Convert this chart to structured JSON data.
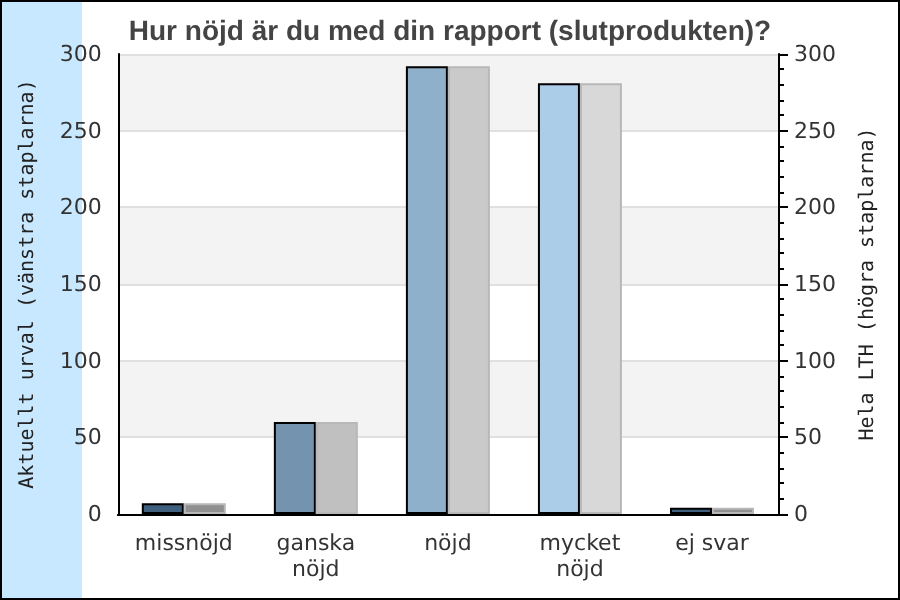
{
  "chart_data": {
    "type": "bar",
    "title": "Hur nöjd är du med din rapport (slutprodukten)?",
    "ylabel": "Aktuellt urval (vänstra staplarna)",
    "y2label": "Hela LTH (högra staplarna)",
    "categories": [
      "missnöjd",
      "ganska\nnöjd",
      "nöjd",
      "mycket\nnöjd",
      "ej svar"
    ],
    "series": [
      {
        "colors": [
          "#3f5f7f",
          "#7393ae",
          "#8fb0cb",
          "#abcde8",
          "#3f5f7f"
        ],
        "values": [
          7,
          60,
          292,
          281,
          4
        ]
      },
      {
        "axis": "y2",
        "colors": [
          "#909090",
          "#c0c0c0",
          "#cacaca",
          "#d8d8d8",
          "#909090"
        ],
        "values": [
          7,
          60,
          292,
          281,
          4
        ]
      }
    ],
    "ylim": [
      0,
      300
    ],
    "yticks": [
      0,
      50,
      100,
      150,
      200,
      250,
      300
    ],
    "y2lim": [
      0,
      300
    ],
    "y2ticks": [
      0,
      50,
      100,
      150,
      200,
      250,
      300
    ],
    "grid": "y"
  }
}
